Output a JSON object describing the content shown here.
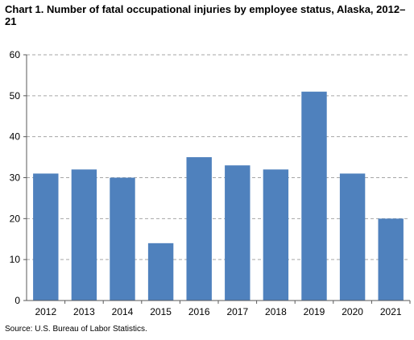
{
  "chart_data": {
    "type": "bar",
    "title": "Chart 1. Number of fatal occupational injuries by employee status,  Alaska, 2012–21",
    "categories": [
      "2012",
      "2013",
      "2014",
      "2015",
      "2016",
      "2017",
      "2018",
      "2019",
      "2020",
      "2021"
    ],
    "values": [
      31,
      32,
      30,
      14,
      35,
      33,
      32,
      51,
      31,
      20
    ],
    "y_ticks": [
      "0",
      "10",
      "20",
      "30",
      "40",
      "50",
      "60"
    ],
    "ylim": [
      0,
      60
    ],
    "xlabel": "",
    "ylabel": "",
    "grid": "horizontal dashed",
    "bar_color": "#4f81bd",
    "grid_color": "#a6a6a6",
    "axis_color": "#595959"
  },
  "source": "Source: U.S. Bureau of Labor Statistics."
}
